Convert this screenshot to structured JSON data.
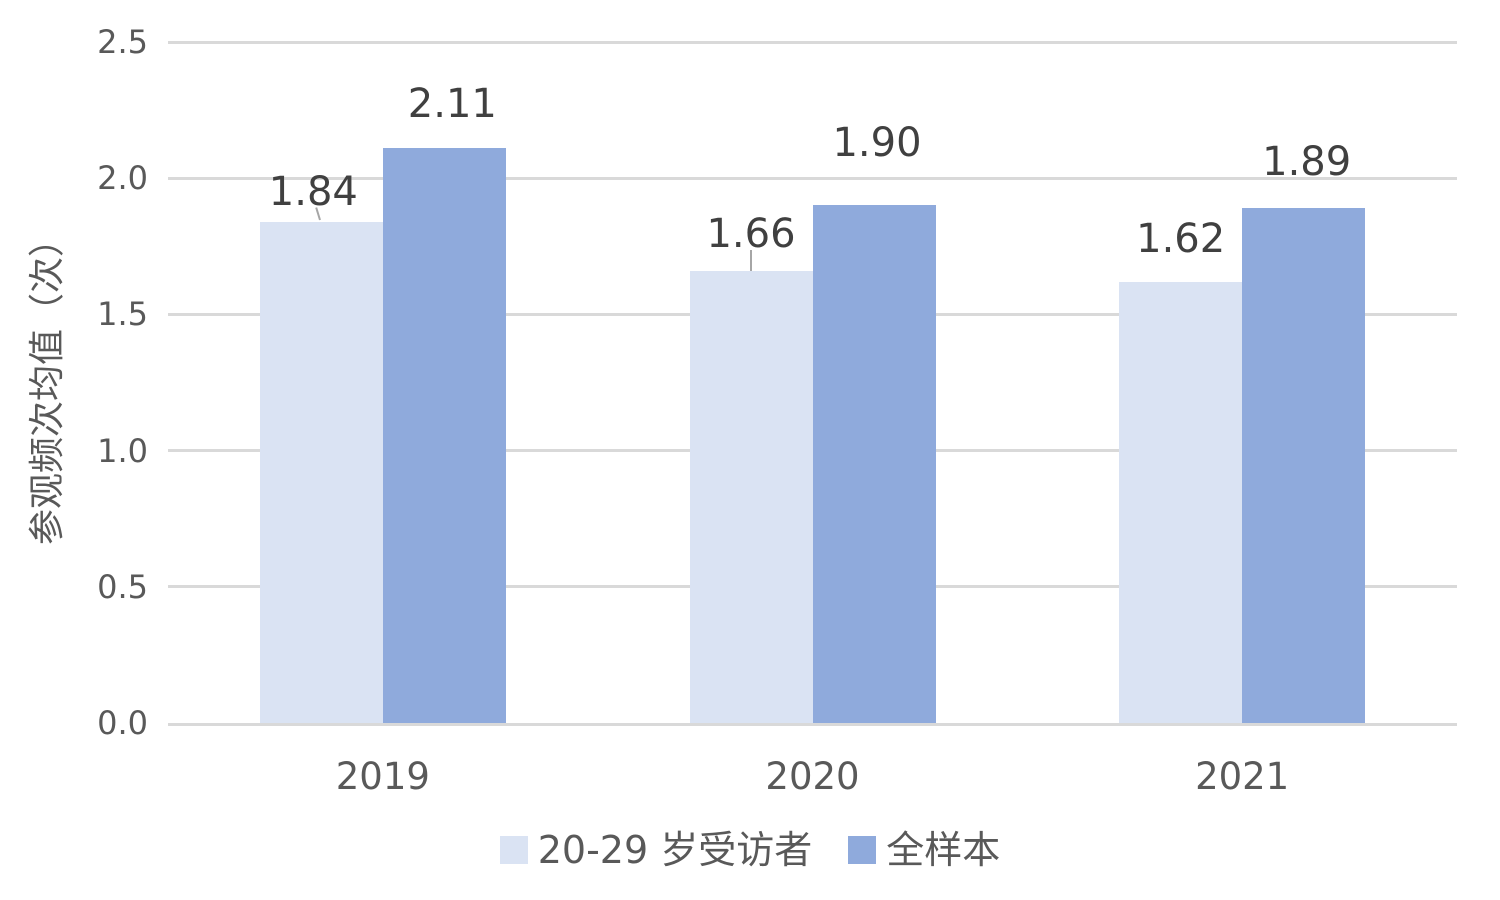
{
  "chart_data": {
    "type": "bar",
    "title": "",
    "ylabel": "参观频次均值（次）",
    "categories": [
      "2019",
      "2020",
      "2021"
    ],
    "series": [
      {
        "name": "20-29 岁受访者",
        "color": "#DAE3F3",
        "values": [
          1.84,
          1.66,
          1.62
        ],
        "labels": [
          "1.84",
          "1.66",
          "1.62"
        ],
        "label_gaps": [
          17,
          24,
          30
        ],
        "label_dx": [
          -8,
          0,
          0
        ],
        "leaders": [
          "diag",
          "vert",
          null
        ]
      },
      {
        "name": "全样本",
        "color": "#8FAADC",
        "values": [
          2.11,
          1.9,
          1.89
        ],
        "labels": [
          "2.11",
          "1.90",
          "1.89"
        ],
        "label_gaps": [
          31,
          49,
          33
        ],
        "label_dx": [
          8,
          3,
          3
        ],
        "leaders": [
          null,
          null,
          null
        ]
      }
    ],
    "ylim": [
      0,
      2.5
    ],
    "yticks": [
      "0.0",
      "0.5",
      "1.0",
      "1.5",
      "2.0",
      "2.5"
    ],
    "grid": true,
    "legend_position": "bottom",
    "colors": {
      "background": "#FFFFFF",
      "gridline": "#D9D9D9",
      "axis_text": "#595959",
      "data_label_text": "#404040",
      "leader_line": "#A6A6A6"
    }
  }
}
